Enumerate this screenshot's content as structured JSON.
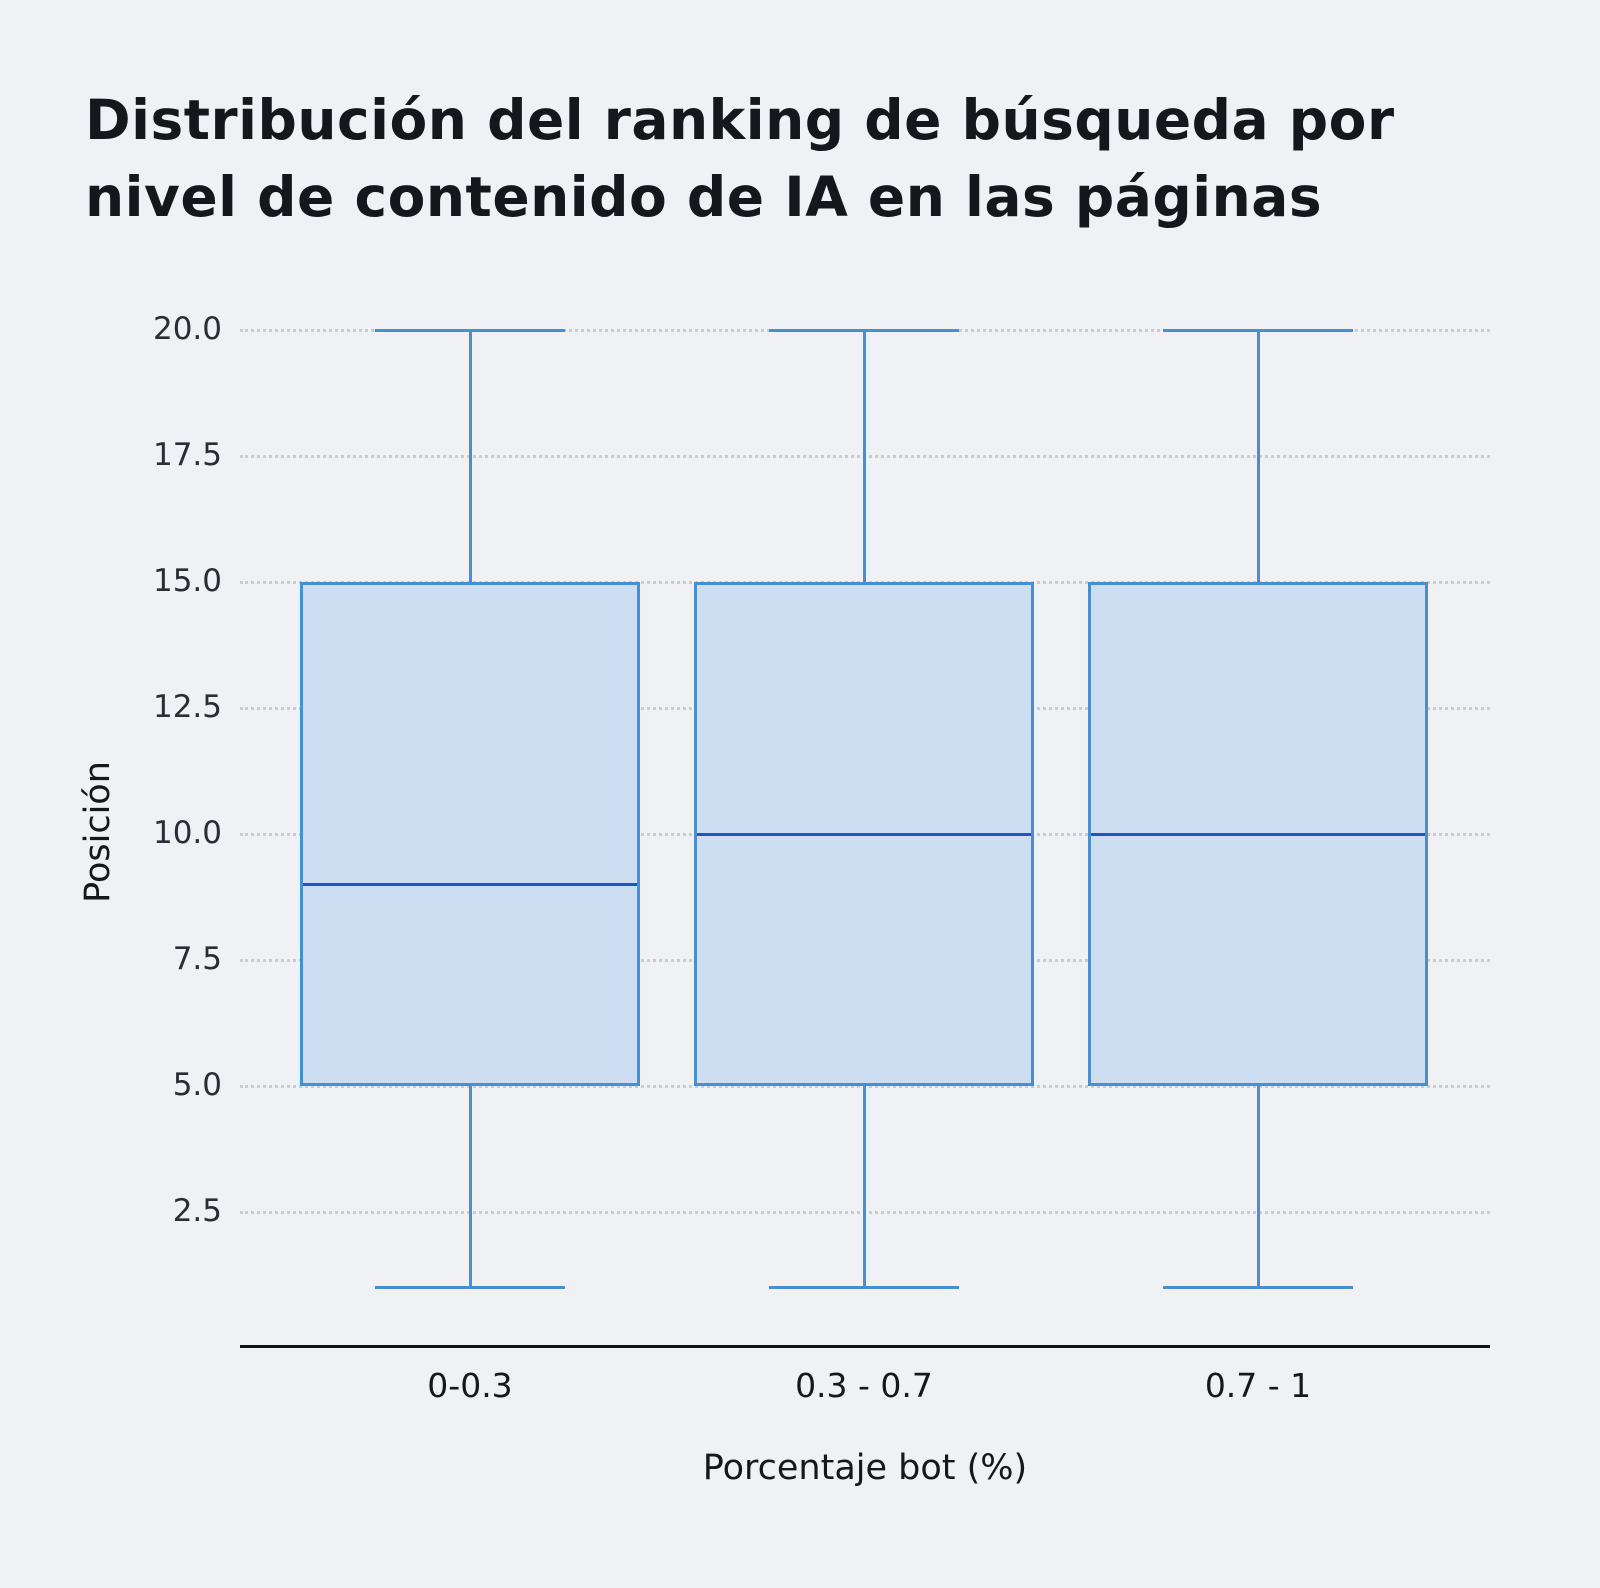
{
  "chart_data": {
    "type": "boxplot",
    "title": "Distribución del ranking de búsqueda por nivel de contenido de IA en las páginas",
    "xlabel": "Porcentaje bot (%)",
    "ylabel": "Posición",
    "categories": [
      "0-0.3",
      "0.3 - 0.7",
      "0.7 - 1"
    ],
    "ytick_labels": [
      "20.0",
      "17.5",
      "15.0",
      "12.5",
      "10.0",
      "7.5",
      "5.0",
      "2.5"
    ],
    "ylim": [
      0,
      20.5
    ],
    "grid": "dotted-horizontal",
    "legend": "none",
    "series": [
      {
        "category": "0-0.3",
        "whisker_low": 1,
        "q1": 5,
        "median": 9,
        "q3": 15,
        "whisker_high": 20
      },
      {
        "category": "0.3 - 0.7",
        "whisker_low": 1,
        "q1": 5,
        "median": 10,
        "q3": 15,
        "whisker_high": 20
      },
      {
        "category": "0.7 - 1",
        "whisker_low": 1,
        "q1": 5,
        "median": 10,
        "q3": 15,
        "whisker_high": 20
      }
    ],
    "colors": {
      "background": "#eff1f4",
      "box_fill": "#cddef2",
      "box_stroke": "#4590d4",
      "median_line": "#1c57c9",
      "gridline": "#c9ccd4",
      "axis_line": "#111318",
      "text": "#15171c"
    }
  }
}
